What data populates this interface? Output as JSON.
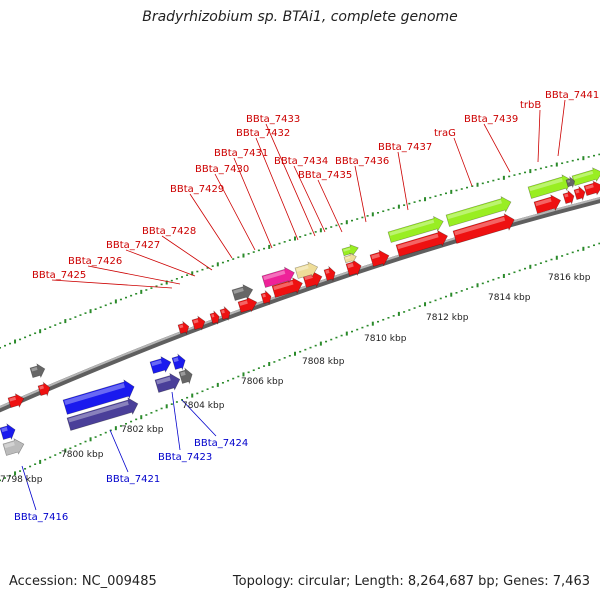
{
  "title": "Bradyrhizobium sp. BTAi1, complete genome",
  "footer": {
    "accession": "Accession: NC_009485",
    "topology": "Topology: circular; Length: 8,264,687 bp; Genes: 7,463"
  },
  "colors": {
    "forward_label": "#cc0000",
    "reverse_label": "#0000cc",
    "backbone": "#8a8a8a",
    "tick": "#2a8a2a",
    "gene_red": "#ee1111",
    "gene_blue": "#1a1aee",
    "gene_navy": "#4a3f99",
    "gene_green": "#99ee22",
    "gene_pink": "#ee2299",
    "gene_khaki": "#eedd99",
    "gene_gray": "#666666",
    "gene_lightgray": "#bbbbbb"
  },
  "scale_labels": [
    "7798 kbp",
    "7800 kbp",
    "7802 kbp",
    "7804 kbp",
    "7806 kbp",
    "7808 kbp",
    "7810 kbp",
    "7812 kbp",
    "7814 kbp",
    "7816 kbp"
  ],
  "forward_gene_labels": [
    "BBta_7425",
    "BBta_7426",
    "BBta_7427",
    "BBta_7428",
    "BBta_7429",
    "BBta_7430",
    "BBta_7431",
    "BBta_7432",
    "BBta_7433",
    "BBta_7434",
    "BBta_7435",
    "BBta_7436",
    "BBta_7437",
    "traG",
    "BBta_7439",
    "trbB",
    "BBta_7441"
  ],
  "reverse_gene_labels": [
    "BBta_7416",
    "BBta_7421",
    "BBta_7423",
    "BBta_7424"
  ]
}
